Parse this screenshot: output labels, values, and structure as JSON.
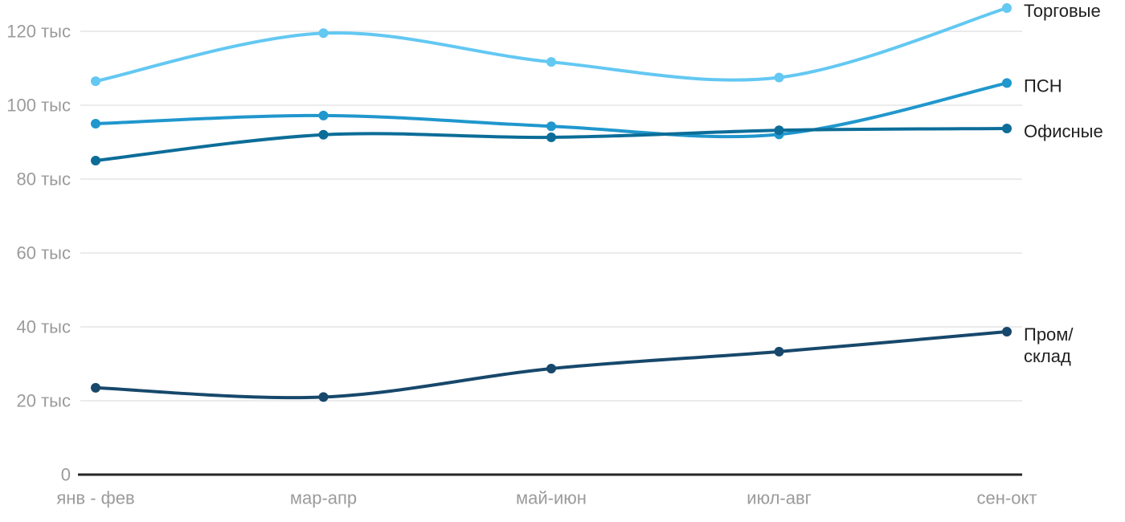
{
  "chart_data": {
    "type": "line",
    "title": "",
    "xlabel": "",
    "ylabel": "",
    "unit_suffix": "тыс",
    "grid": true,
    "legend_position": "right-of-line-end",
    "categories": [
      "янв - фев",
      "мар-апр",
      "май-июн",
      "июл-авг",
      "сен-окт"
    ],
    "series": [
      {
        "key": "torgovye",
        "name": "Торговые",
        "label_lines": [
          "Торговые"
        ],
        "color": "#63c8f2",
        "values": [
          106.5,
          119.5,
          111.7,
          107.5,
          126.3
        ]
      },
      {
        "key": "psn",
        "name": "ПСН",
        "label_lines": [
          "ПСН"
        ],
        "color": "#2097cd",
        "values": [
          95.0,
          97.2,
          94.3,
          92.1,
          106.0
        ]
      },
      {
        "key": "ofisnye",
        "name": "Офисные",
        "label_lines": [
          "Офисные"
        ],
        "color": "#0c6d98",
        "values": [
          85.0,
          92.0,
          91.3,
          93.2,
          93.7
        ]
      },
      {
        "key": "prom-sklad",
        "name": "Пром/склад",
        "label_lines": [
          "Пром/",
          "склад"
        ],
        "color": "#17486b",
        "values": [
          23.5,
          21.0,
          28.7,
          33.3,
          38.7
        ]
      }
    ],
    "ylim": [
      0,
      130
    ],
    "yticks": [
      {
        "value": 0,
        "label": "0"
      },
      {
        "value": 20,
        "label": "20 тыс"
      },
      {
        "value": 40,
        "label": "40 тыс"
      },
      {
        "value": 60,
        "label": "60 тыс"
      },
      {
        "value": 80,
        "label": "80 тыс"
      },
      {
        "value": 100,
        "label": "100 тыс"
      },
      {
        "value": 120,
        "label": "120 тыс"
      }
    ],
    "colors": {
      "background": "#ffffff",
      "grid_line": "#ebebeb",
      "axis_line": "#262626",
      "tick_label": "#9b9b9b",
      "series_label": "#1f1f1f"
    }
  }
}
